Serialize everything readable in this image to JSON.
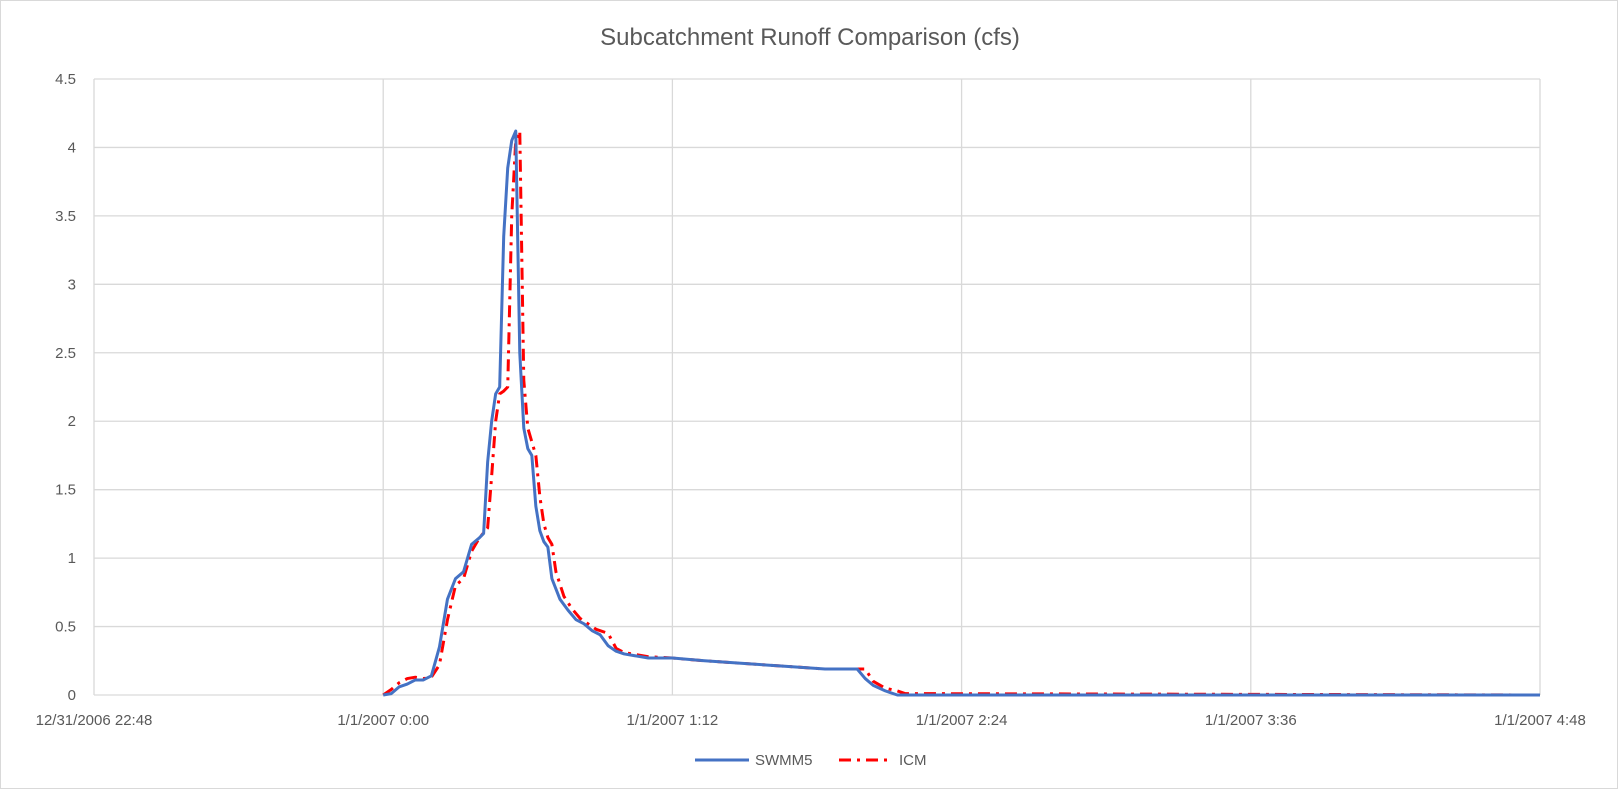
{
  "chart_data": {
    "type": "line",
    "title": "Subcatchment Runoff Comparison (cfs)",
    "xlabel": "",
    "ylabel": "",
    "x_unit": "time",
    "xlim": [
      "12/31/2006 22:48",
      "1/1/2007 4:48"
    ],
    "x_ticks": [
      "12/31/2006 22:48",
      "1/1/2007 0:00",
      "1/1/2007 1:12",
      "1/1/2007 2:24",
      "1/1/2007 3:36",
      "1/1/2007 4:48"
    ],
    "ylim": [
      0,
      4.5
    ],
    "y_ticks": [
      "0",
      "0.5",
      "1",
      "1.5",
      "2",
      "2.5",
      "3",
      "3.5",
      "4",
      "4.5"
    ],
    "grid": true,
    "legend_position": "bottom",
    "series": [
      {
        "name": "SWMM5",
        "color": "#4472c4",
        "style": "solid",
        "points": [
          [
            "1/1/2007 0:00",
            0
          ],
          [
            "1/1/2007 0:02",
            0.01
          ],
          [
            "1/1/2007 0:04",
            0.06
          ],
          [
            "1/1/2007 0:06",
            0.08
          ],
          [
            "1/1/2007 0:08",
            0.11
          ],
          [
            "1/1/2007 0:10",
            0.11
          ],
          [
            "1/1/2007 0:12",
            0.14
          ],
          [
            "1/1/2007 0:14",
            0.35
          ],
          [
            "1/1/2007 0:16",
            0.7
          ],
          [
            "1/1/2007 0:18",
            0.85
          ],
          [
            "1/1/2007 0:20",
            0.9
          ],
          [
            "1/1/2007 0:22",
            1.1
          ],
          [
            "1/1/2007 0:24",
            1.15
          ],
          [
            "1/1/2007 0:25",
            1.18
          ],
          [
            "1/1/2007 0:26",
            1.7
          ],
          [
            "1/1/2007 0:27",
            2.0
          ],
          [
            "1/1/2007 0:28",
            2.2
          ],
          [
            "1/1/2007 0:29",
            2.25
          ],
          [
            "1/1/2007 0:30",
            3.35
          ],
          [
            "1/1/2007 0:31",
            3.85
          ],
          [
            "1/1/2007 0:32",
            4.05
          ],
          [
            "1/1/2007 0:33",
            4.12
          ],
          [
            "1/1/2007 0:34",
            2.5
          ],
          [
            "1/1/2007 0:35",
            1.95
          ],
          [
            "1/1/2007 0:36",
            1.8
          ],
          [
            "1/1/2007 0:37",
            1.75
          ],
          [
            "1/1/2007 0:38",
            1.38
          ],
          [
            "1/1/2007 0:39",
            1.2
          ],
          [
            "1/1/2007 0:40",
            1.12
          ],
          [
            "1/1/2007 0:41",
            1.08
          ],
          [
            "1/1/2007 0:42",
            0.85
          ],
          [
            "1/1/2007 0:44",
            0.7
          ],
          [
            "1/1/2007 0:46",
            0.62
          ],
          [
            "1/1/2007 0:48",
            0.55
          ],
          [
            "1/1/2007 0:50",
            0.52
          ],
          [
            "1/1/2007 0:52",
            0.47
          ],
          [
            "1/1/2007 0:54",
            0.44
          ],
          [
            "1/1/2007 0:56",
            0.36
          ],
          [
            "1/1/2007 0:58",
            0.32
          ],
          [
            "1/1/2007 1:00",
            0.3
          ],
          [
            "1/1/2007 1:06",
            0.27
          ],
          [
            "1/1/2007 1:12",
            0.27
          ],
          [
            "1/1/2007 1:20",
            0.25
          ],
          [
            "1/1/2007 1:30",
            0.23
          ],
          [
            "1/1/2007 1:40",
            0.21
          ],
          [
            "1/1/2007 1:50",
            0.19
          ],
          [
            "1/1/2007 1:58",
            0.19
          ],
          [
            "1/1/2007 2:00",
            0.12
          ],
          [
            "1/1/2007 2:02",
            0.07
          ],
          [
            "1/1/2007 2:05",
            0.03
          ],
          [
            "1/1/2007 2:08",
            0
          ],
          [
            "1/1/2007 4:48",
            0
          ]
        ]
      },
      {
        "name": "ICM",
        "color": "#ff0000",
        "style": "dash-dot",
        "points": [
          [
            "1/1/2007 0:00",
            0
          ],
          [
            "1/1/2007 0:02",
            0.04
          ],
          [
            "1/1/2007 0:04",
            0.09
          ],
          [
            "1/1/2007 0:06",
            0.12
          ],
          [
            "1/1/2007 0:08",
            0.13
          ],
          [
            "1/1/2007 0:10",
            0.12
          ],
          [
            "1/1/2007 0:12",
            0.13
          ],
          [
            "1/1/2007 0:14",
            0.22
          ],
          [
            "1/1/2007 0:16",
            0.55
          ],
          [
            "1/1/2007 0:18",
            0.8
          ],
          [
            "1/1/2007 0:20",
            0.85
          ],
          [
            "1/1/2007 0:22",
            1.05
          ],
          [
            "1/1/2007 0:24",
            1.15
          ],
          [
            "1/1/2007 0:26",
            1.22
          ],
          [
            "1/1/2007 0:27",
            1.6
          ],
          [
            "1/1/2007 0:28",
            2.0
          ],
          [
            "1/1/2007 0:29",
            2.2
          ],
          [
            "1/1/2007 0:30",
            2.22
          ],
          [
            "1/1/2007 0:31",
            2.25
          ],
          [
            "1/1/2007 0:32",
            3.5
          ],
          [
            "1/1/2007 0:33",
            4.05
          ],
          [
            "1/1/2007 0:34",
            4.12
          ],
          [
            "1/1/2007 0:35",
            2.3
          ],
          [
            "1/1/2007 0:36",
            1.95
          ],
          [
            "1/1/2007 0:37",
            1.85
          ],
          [
            "1/1/2007 0:38",
            1.75
          ],
          [
            "1/1/2007 0:39",
            1.45
          ],
          [
            "1/1/2007 0:40",
            1.25
          ],
          [
            "1/1/2007 0:41",
            1.15
          ],
          [
            "1/1/2007 0:42",
            1.1
          ],
          [
            "1/1/2007 0:43",
            0.9
          ],
          [
            "1/1/2007 0:45",
            0.72
          ],
          [
            "1/1/2007 0:47",
            0.63
          ],
          [
            "1/1/2007 0:49",
            0.56
          ],
          [
            "1/1/2007 0:51",
            0.52
          ],
          [
            "1/1/2007 0:53",
            0.48
          ],
          [
            "1/1/2007 0:56",
            0.45
          ],
          [
            "1/1/2007 0:58",
            0.34
          ],
          [
            "1/1/2007 1:00",
            0.31
          ],
          [
            "1/1/2007 1:06",
            0.28
          ],
          [
            "1/1/2007 1:12",
            0.27
          ],
          [
            "1/1/2007 1:20",
            0.25
          ],
          [
            "1/1/2007 1:30",
            0.23
          ],
          [
            "1/1/2007 1:40",
            0.21
          ],
          [
            "1/1/2007 1:50",
            0.19
          ],
          [
            "1/1/2007 2:00",
            0.19
          ],
          [
            "1/1/2007 2:02",
            0.1
          ],
          [
            "1/1/2007 2:05",
            0.05
          ],
          [
            "1/1/2007 2:08",
            0.03
          ],
          [
            "1/1/2007 2:10",
            0.01
          ],
          [
            "1/1/2007 2:14",
            0.01
          ],
          [
            "1/1/2007 4:48",
            0
          ]
        ]
      }
    ]
  }
}
